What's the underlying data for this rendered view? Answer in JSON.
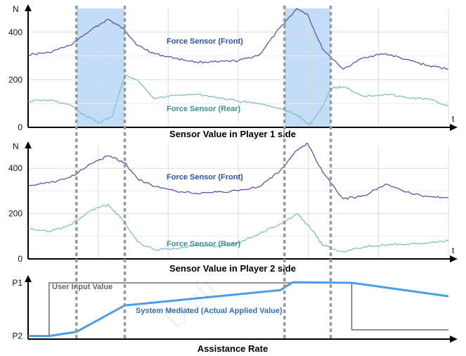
{
  "chart_data": [
    {
      "type": "line",
      "title": "Sensor Value in Player 1 side",
      "xlabel": "t",
      "ylabel": "N",
      "ylim": [
        0,
        500
      ],
      "yticks": [
        0,
        200,
        400
      ],
      "ytick_labels": [
        "0",
        "200",
        "400"
      ],
      "grid": true,
      "highlight_bands": [
        [
          0.115,
          0.23
        ],
        [
          0.61,
          0.72
        ]
      ],
      "series": [
        {
          "name": "Force Sensor (Front)",
          "color": "#5a55a6",
          "x": [
            0,
            0.05,
            0.1,
            0.15,
            0.19,
            0.23,
            0.26,
            0.3,
            0.35,
            0.4,
            0.45,
            0.5,
            0.55,
            0.6,
            0.64,
            0.665,
            0.7,
            0.75,
            0.8,
            0.85,
            0.9,
            0.95,
            1.0
          ],
          "values": [
            305,
            315,
            345,
            410,
            455,
            410,
            345,
            310,
            290,
            275,
            275,
            280,
            305,
            420,
            500,
            475,
            330,
            245,
            295,
            310,
            285,
            260,
            245
          ]
        },
        {
          "name": "Force Sensor  (Rear)",
          "color": "#7fbfc6",
          "x": [
            0,
            0.05,
            0.1,
            0.13,
            0.17,
            0.2,
            0.23,
            0.26,
            0.3,
            0.35,
            0.4,
            0.45,
            0.5,
            0.55,
            0.6,
            0.64,
            0.67,
            0.7,
            0.72,
            0.75,
            0.8,
            0.85,
            0.9,
            0.95,
            1.0
          ],
          "values": [
            110,
            115,
            95,
            55,
            20,
            45,
            220,
            200,
            120,
            135,
            140,
            125,
            110,
            100,
            80,
            50,
            10,
            85,
            165,
            170,
            130,
            140,
            125,
            120,
            90
          ]
        }
      ]
    },
    {
      "type": "line",
      "title": "Sensor Value in Player 2 side",
      "xlabel": "t",
      "ylabel": "N",
      "ylim": [
        0,
        500
      ],
      "yticks": [
        0,
        200,
        400
      ],
      "ytick_labels": [
        "0",
        "200",
        "400"
      ],
      "grid": true,
      "series": [
        {
          "name": "Force Sensor (Front)",
          "color": "#5a55a6",
          "x": [
            0,
            0.05,
            0.1,
            0.15,
            0.19,
            0.23,
            0.26,
            0.3,
            0.35,
            0.4,
            0.45,
            0.5,
            0.55,
            0.6,
            0.64,
            0.665,
            0.7,
            0.75,
            0.8,
            0.85,
            0.9,
            0.95,
            1.0
          ],
          "values": [
            325,
            335,
            360,
            420,
            455,
            425,
            355,
            320,
            300,
            290,
            295,
            300,
            320,
            390,
            480,
            510,
            385,
            265,
            280,
            330,
            295,
            275,
            270
          ]
        },
        {
          "name": "Force Sensor (Rear)",
          "color": "#7fbfc6",
          "x": [
            0,
            0.05,
            0.1,
            0.15,
            0.19,
            0.23,
            0.26,
            0.3,
            0.35,
            0.4,
            0.45,
            0.5,
            0.55,
            0.6,
            0.64,
            0.68,
            0.7,
            0.75,
            0.8,
            0.85,
            0.9,
            0.95,
            1.0
          ],
          "values": [
            135,
            120,
            150,
            215,
            240,
            160,
            75,
            40,
            45,
            60,
            55,
            70,
            110,
            155,
            200,
            120,
            60,
            30,
            55,
            60,
            65,
            70,
            80
          ]
        }
      ]
    },
    {
      "type": "line",
      "title": "Assistance Rate",
      "ylim": [
        0,
        1
      ],
      "ytick_labels": [
        "P2",
        "P1"
      ],
      "ytick_values": [
        0.05,
        0.92
      ],
      "series": [
        {
          "name": "User Input Value",
          "color": "#555555",
          "x": [
            0,
            0.05,
            0.05,
            0.77,
            0.77,
            1.0
          ],
          "values": [
            0.05,
            0.05,
            0.92,
            0.92,
            0.15,
            0.15
          ]
        },
        {
          "name": "System Mediated (Actual Applied Value)",
          "color": "#4a9ee8",
          "x": [
            0,
            0.05,
            0.115,
            0.23,
            0.6,
            0.63,
            0.77,
            1.0
          ],
          "values": [
            0.05,
            0.05,
            0.12,
            0.55,
            0.8,
            0.93,
            0.92,
            0.7
          ]
        }
      ]
    }
  ],
  "watermark": "Draft"
}
